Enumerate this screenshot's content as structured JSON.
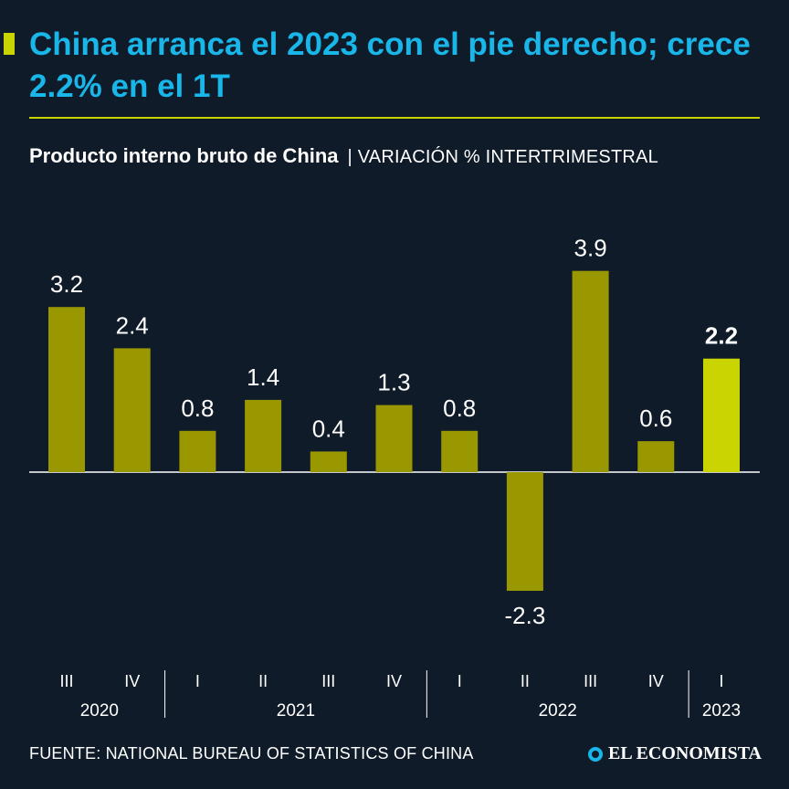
{
  "header": {
    "title": "China arranca el 2023 con el pie derecho; crece 2.2% en el 1T"
  },
  "subtitle": {
    "main": "Producto interno bruto de China",
    "separator": "|",
    "unit": "VARIACIÓN % INTERTRIMESTRAL"
  },
  "footer": {
    "source": "FUENTE: NATIONAL BUREAU OF STATISTICS OF CHINA",
    "brand": "EL ECONOMISTA"
  },
  "colors": {
    "background": "#0f1b28",
    "title": "#19b6ea",
    "accent": "#c9d400",
    "bar": "#9a9800",
    "bar_highlight": "#c9d400",
    "text": "#ffffff"
  },
  "chart_data": {
    "type": "bar",
    "title": "Producto interno bruto de China",
    "ylabel": "VARIACIÓN % INTERTRIMESTRAL",
    "xlabel": "",
    "categories": [
      "III",
      "IV",
      "I",
      "II",
      "III",
      "IV",
      "I",
      "II",
      "III",
      "IV",
      "I"
    ],
    "years": [
      {
        "label": "2020",
        "count": 2
      },
      {
        "label": "2021",
        "count": 4
      },
      {
        "label": "2022",
        "count": 4
      },
      {
        "label": "2023",
        "count": 1
      }
    ],
    "values": [
      3.2,
      2.4,
      0.8,
      1.4,
      0.4,
      1.3,
      0.8,
      -2.3,
      3.9,
      0.6,
      2.2
    ],
    "value_labels": [
      "3.2",
      "2.4",
      "0.8",
      "1.4",
      "0.4",
      "1.3",
      "0.8",
      "-2.3",
      "3.9",
      "0.6",
      "2.2"
    ],
    "highlight_index": 10,
    "ylim": [
      -2.3,
      3.9
    ],
    "grid": false,
    "legend": "none"
  }
}
